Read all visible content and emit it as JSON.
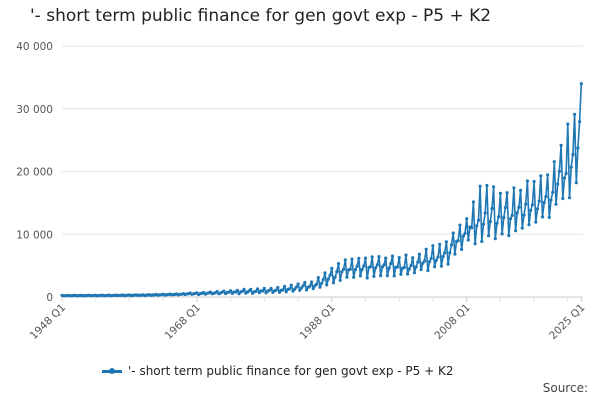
{
  "chart_data": {
    "type": "line",
    "title": "'- short term public finance for gen govt exp - P5 + K2",
    "xlabel": "",
    "ylabel": "",
    "x_tick_labels": [
      "1948 Q1",
      "1968 Q1",
      "1988 Q1",
      "2008 Q1",
      "2025 Q1"
    ],
    "x_tick_years": [
      1948,
      1968,
      1988,
      2008,
      2025
    ],
    "x_range": [
      1948,
      2025.25
    ],
    "y_ticks": [
      0,
      10000,
      20000,
      30000,
      40000
    ],
    "y_tick_labels": [
      "0",
      "10 000",
      "20 000",
      "30 000",
      "40 000"
    ],
    "ylim": [
      0,
      40000
    ],
    "grid": "horizontal",
    "legend_position": "bottom",
    "series": [
      {
        "name": "'- short term public finance for gen govt exp - P5 + K2",
        "color": "#1f77b4",
        "frequency": "quarterly",
        "start": "1948 Q1",
        "note_values": "annual anchor values (approximate, read from chart); quarterly line oscillates seasonally around them",
        "anchor_years": [
          1948,
          1955,
          1960,
          1965,
          1970,
          1975,
          1980,
          1985,
          1990,
          1995,
          2000,
          2005,
          2008,
          2010,
          2015,
          2020,
          2023,
          2025
        ],
        "anchor_trough": [
          200,
          200,
          250,
          350,
          500,
          600,
          800,
          1200,
          3000,
          3500,
          3800,
          5500,
          9000,
          9000,
          10500,
          13000,
          16000,
          21000
        ],
        "anchor_peak": [
          250,
          300,
          350,
          500,
          800,
          1200,
          1500,
          2500,
          6000,
          6500,
          6500,
          9000,
          13000,
          17500,
          17000,
          19500,
          27000,
          34000
        ]
      }
    ]
  },
  "legend": {
    "label": "'- short term public finance for gen govt exp - P5 + K2"
  },
  "source": {
    "label": "Source:"
  }
}
